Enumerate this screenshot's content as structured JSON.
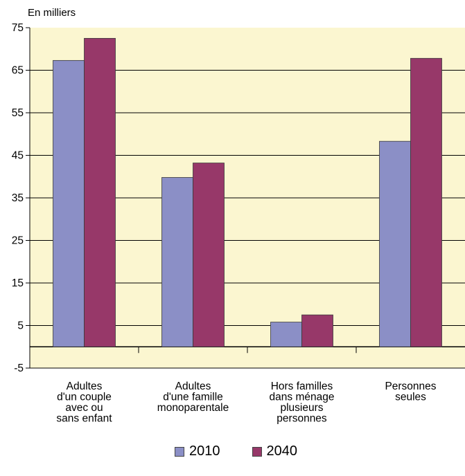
{
  "chart_data": {
    "type": "bar",
    "title": "",
    "unit_label": "En milliers",
    "xlabel": "",
    "ylabel": "",
    "ylim": [
      -5,
      75
    ],
    "yticks": [
      75,
      65,
      55,
      45,
      35,
      25,
      15,
      5,
      -5
    ],
    "grid": true,
    "legend_position": "bottom",
    "categories": [
      [
        "Adultes",
        "d'un couple",
        "avec ou",
        "sans enfant"
      ],
      [
        "Adultes",
        "d'une famille",
        "monoparentale"
      ],
      [
        "Hors familles",
        "dans ménage",
        "plusieurs",
        "personnes"
      ],
      [
        "Personnes",
        "seules"
      ]
    ],
    "series": [
      {
        "name": "2010",
        "color": "#8b8fc6",
        "values": [
          67.3,
          39.8,
          5.8,
          48.3
        ]
      },
      {
        "name": "2040",
        "color": "#973869",
        "values": [
          72.5,
          43.2,
          7.5,
          67.8
        ]
      }
    ],
    "plot_background": "#fbf6d0"
  }
}
